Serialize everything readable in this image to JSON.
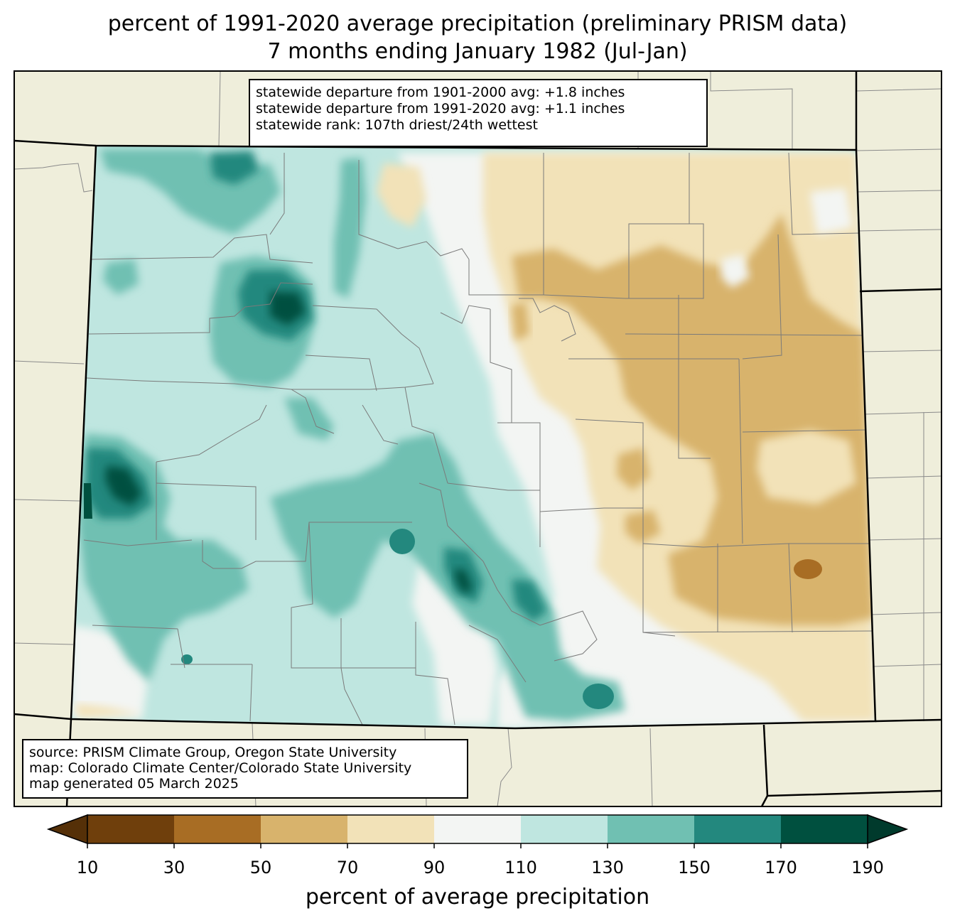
{
  "title": {
    "line1": "percent of 1991-2020 average precipitation (preliminary PRISM data)",
    "line2": "7 months ending January 1982 (Jul-Jan)"
  },
  "stats": {
    "line1": "statewide departure from 1901-2000 avg: +1.8 inches",
    "line2": "statewide departure from 1991-2020 avg: +1.1 inches",
    "line3": "statewide rank: 107th driest/24th wettest"
  },
  "source": {
    "line1": "source: PRISM Climate Group, Oregon State University",
    "line2": "map: Colorado Climate Center/Colorado State University",
    "line3": "map generated 05 March 2025"
  },
  "colorbar": {
    "title": "percent of average precipitation",
    "ticks": [
      "10",
      "30",
      "50",
      "70",
      "90",
      "110",
      "130",
      "150",
      "170",
      "190"
    ],
    "colors": [
      "#6f3f0c",
      "#a86d24",
      "#d8b36c",
      "#f2e2b8",
      "#f3f5f3",
      "#bfe6e0",
      "#70c0b2",
      "#23887e",
      "#00503f"
    ],
    "under_color": "#553008",
    "over_color": "#003a2c"
  },
  "map_colors": {
    "outside": "#efeedb",
    "base": "#bfe6e0"
  }
}
